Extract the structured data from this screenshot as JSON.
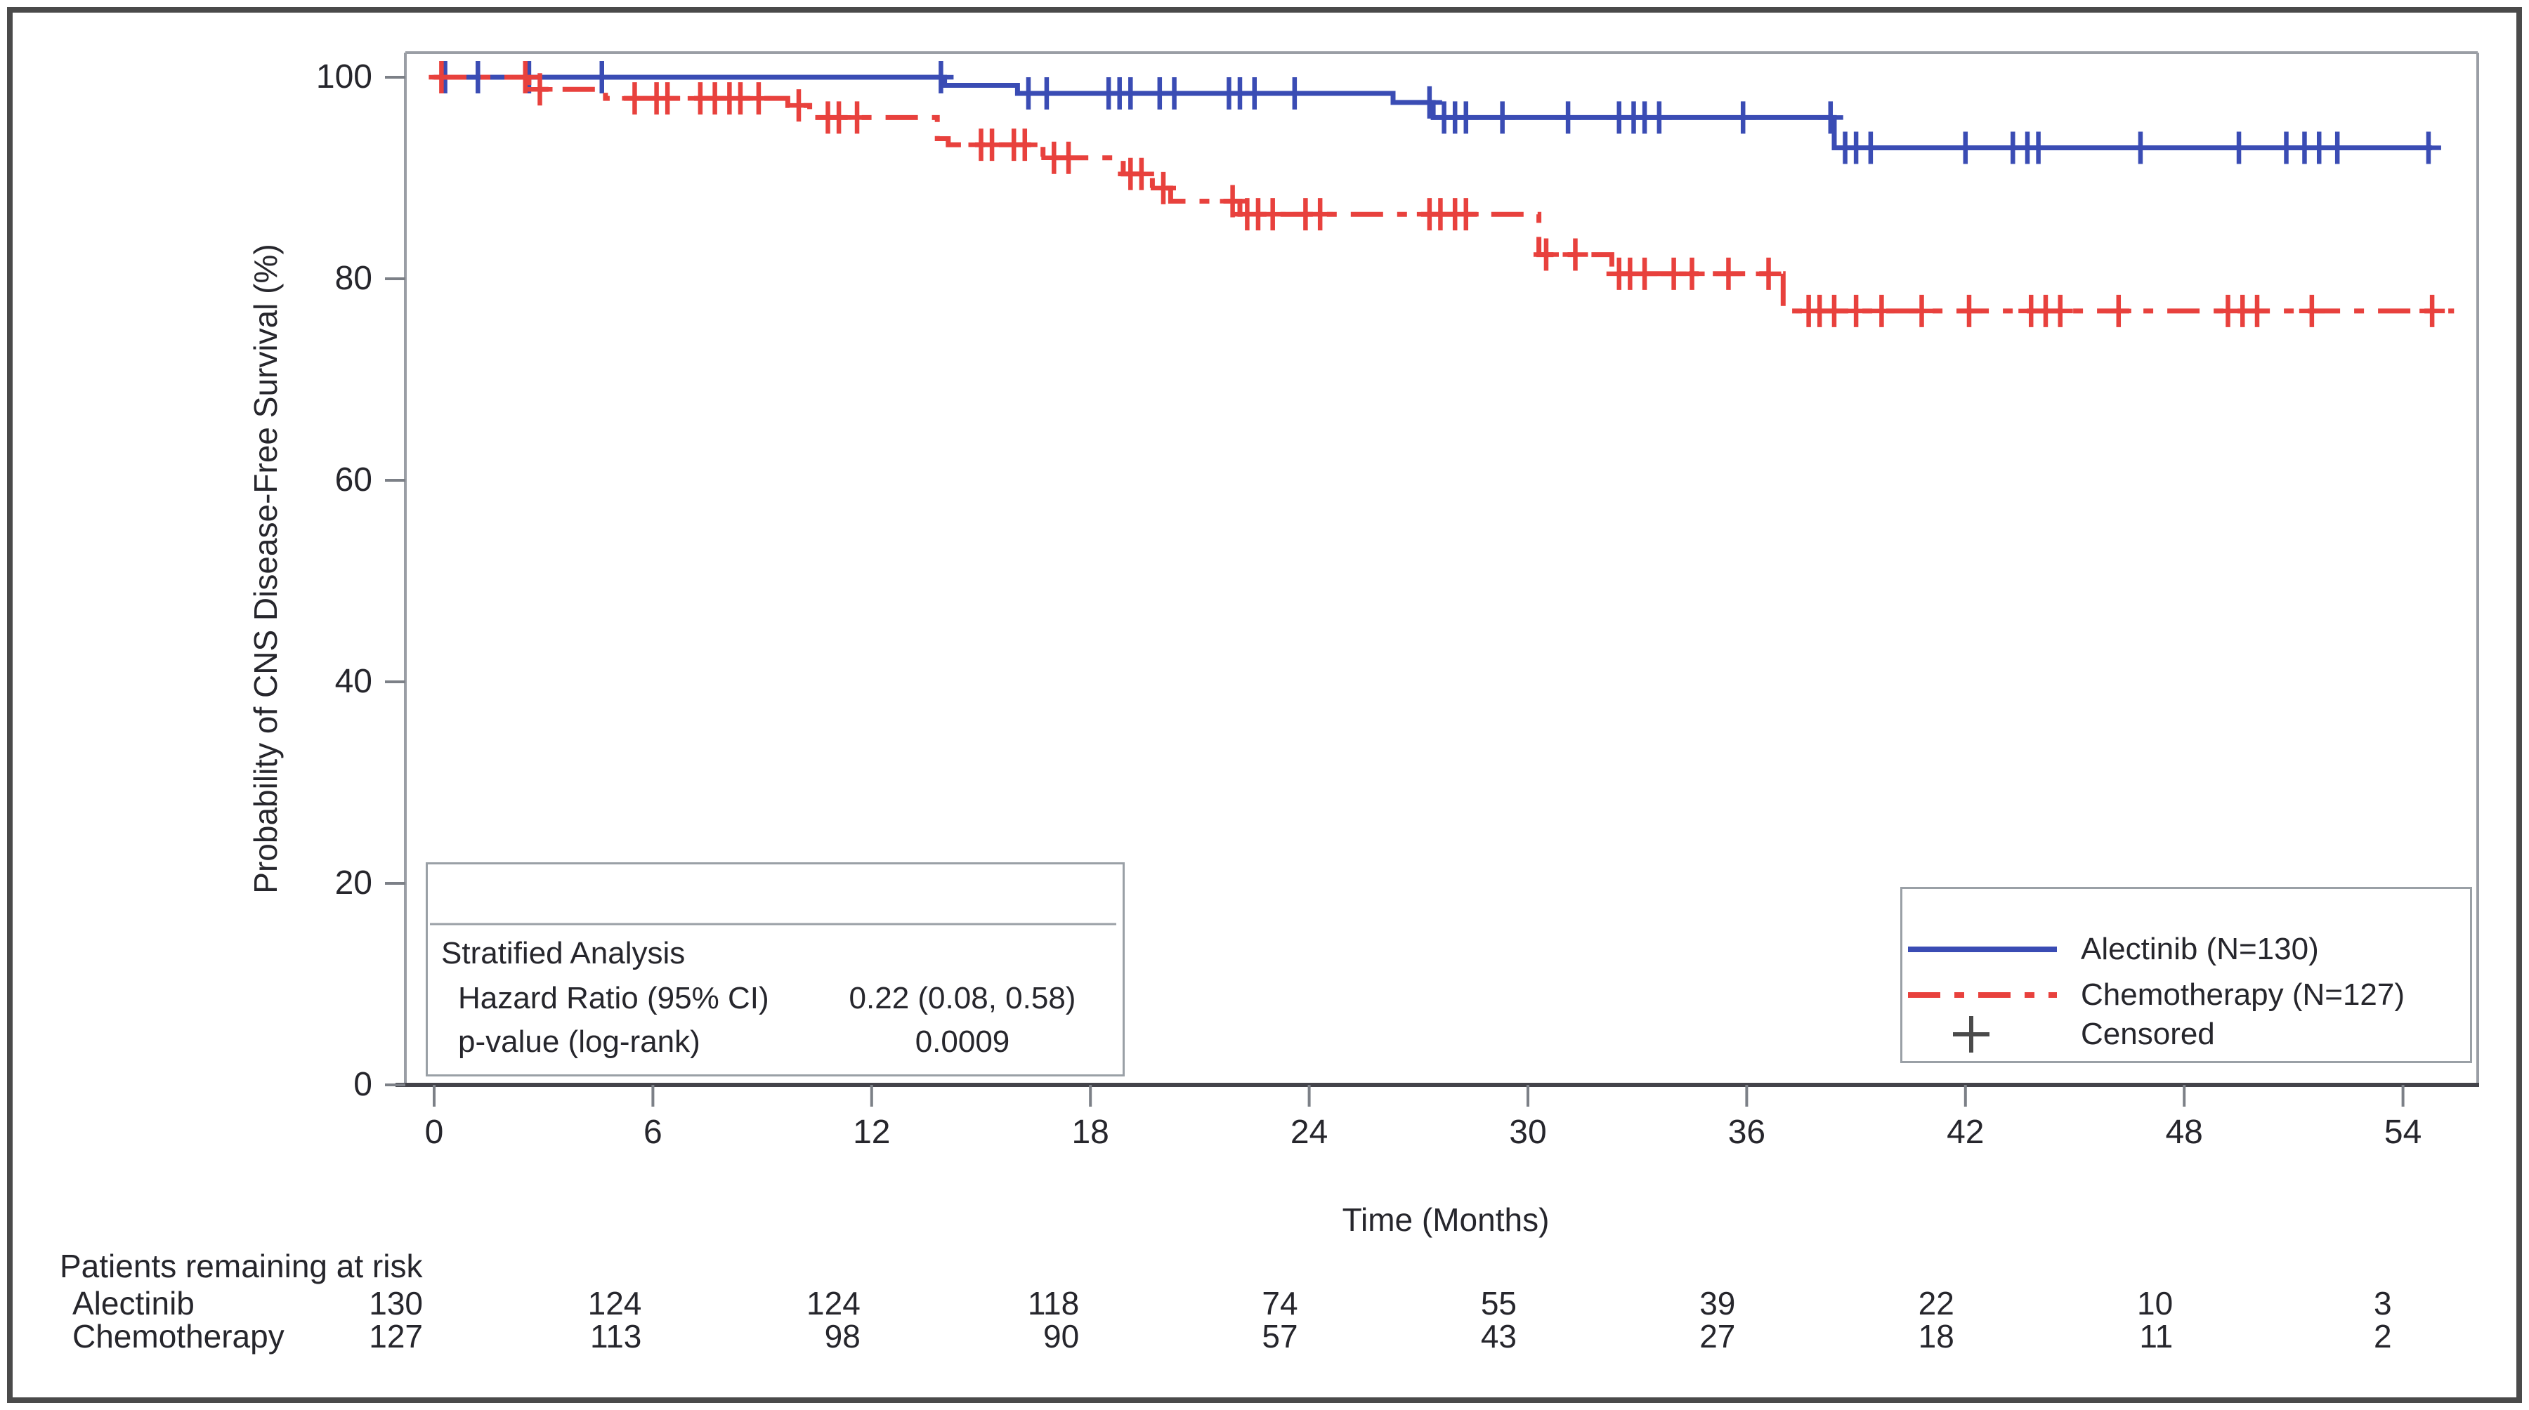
{
  "colors": {
    "alectinib": "#3a4cb4",
    "chemotherapy": "#e8413d",
    "censored_legend": "#4a4a4a",
    "axis_frame": "#9a9ea5",
    "axis_bottom": "#43434a",
    "tick": "#7c8087",
    "box_border": "#9aa0a6",
    "text": "#26262c"
  },
  "chart_data": {
    "type": "line",
    "subtype": "kaplan-meier-step",
    "title": "",
    "xlabel": "Time (Months)",
    "ylabel": "Probability of CNS Disease-Free Survival (%)",
    "x_ticks": [
      0,
      6,
      12,
      18,
      24,
      30,
      36,
      42,
      48,
      54
    ],
    "y_ticks": [
      0,
      20,
      40,
      60,
      80,
      100
    ],
    "xlim": [
      0,
      56.5
    ],
    "ylim": [
      0,
      100
    ],
    "grid": false,
    "legend_position": "lower-right",
    "series": [
      {
        "name": "Alectinib (N=130)",
        "color": "#3a4cb4",
        "line_style": "solid",
        "steps": [
          [
            0,
            100
          ],
          [
            14,
            100
          ],
          [
            14,
            99.2
          ],
          [
            16,
            99.2
          ],
          [
            16,
            98.4
          ],
          [
            26.3,
            98.4
          ],
          [
            26.3,
            97.5
          ],
          [
            27.4,
            97.5
          ],
          [
            27.4,
            96
          ],
          [
            38.4,
            96
          ],
          [
            38.4,
            93
          ],
          [
            54.8,
            93
          ]
        ],
        "censor_marks": [
          [
            0.3,
            100
          ],
          [
            1.2,
            100
          ],
          [
            2.6,
            100
          ],
          [
            4.6,
            100
          ],
          [
            13.9,
            100
          ],
          [
            16.3,
            98.4
          ],
          [
            16.8,
            98.4
          ],
          [
            18.5,
            98.4
          ],
          [
            18.8,
            98.4
          ],
          [
            19.1,
            98.4
          ],
          [
            19.9,
            98.4
          ],
          [
            20.3,
            98.4
          ],
          [
            21.8,
            98.4
          ],
          [
            22.1,
            98.4
          ],
          [
            22.5,
            98.4
          ],
          [
            23.6,
            98.4
          ],
          [
            27.3,
            97.5
          ],
          [
            27.7,
            96
          ],
          [
            28,
            96
          ],
          [
            28.3,
            96
          ],
          [
            29.3,
            96
          ],
          [
            31.1,
            96
          ],
          [
            32.5,
            96
          ],
          [
            32.9,
            96
          ],
          [
            33.2,
            96
          ],
          [
            33.6,
            96
          ],
          [
            35.9,
            96
          ],
          [
            38.3,
            96
          ],
          [
            38.7,
            93
          ],
          [
            39,
            93
          ],
          [
            39.4,
            93
          ],
          [
            42,
            93
          ],
          [
            43.3,
            93
          ],
          [
            43.7,
            93
          ],
          [
            44,
            93
          ],
          [
            46.8,
            93
          ],
          [
            49.5,
            93
          ],
          [
            50.8,
            93
          ],
          [
            51.3,
            93
          ],
          [
            51.7,
            93
          ],
          [
            52.2,
            93
          ],
          [
            54.7,
            93
          ]
        ]
      },
      {
        "name": "Chemotherapy (N=127)",
        "color": "#e8413d",
        "line_style": "dash-dot",
        "steps": [
          [
            0,
            100
          ],
          [
            2.6,
            100
          ],
          [
            2.6,
            98.8
          ],
          [
            4.7,
            98.8
          ],
          [
            4.7,
            97.9
          ],
          [
            9.7,
            97.9
          ],
          [
            9.7,
            97.2
          ],
          [
            10.3,
            97.2
          ],
          [
            10.3,
            96
          ],
          [
            13.8,
            96
          ],
          [
            13.8,
            93.9
          ],
          [
            14.1,
            93.9
          ],
          [
            14.1,
            93.3
          ],
          [
            16.7,
            93.3
          ],
          [
            16.7,
            92
          ],
          [
            18.9,
            92
          ],
          [
            18.9,
            90.4
          ],
          [
            19.7,
            90.4
          ],
          [
            19.7,
            89
          ],
          [
            20.2,
            89
          ],
          [
            20.2,
            87.7
          ],
          [
            22.1,
            87.7
          ],
          [
            22.1,
            86.4
          ],
          [
            30.3,
            86.4
          ],
          [
            30.3,
            82.4
          ],
          [
            32.3,
            82.4
          ],
          [
            32.3,
            80.5
          ],
          [
            37,
            80.5
          ],
          [
            37,
            76.8
          ],
          [
            55.4,
            76.8
          ]
        ],
        "censor_marks": [
          [
            0.2,
            100
          ],
          [
            2.5,
            100
          ],
          [
            2.9,
            98.8
          ],
          [
            5.5,
            97.9
          ],
          [
            6.1,
            97.9
          ],
          [
            6.4,
            97.9
          ],
          [
            7.3,
            97.9
          ],
          [
            7.7,
            97.9
          ],
          [
            8.1,
            97.9
          ],
          [
            8.4,
            97.9
          ],
          [
            8.9,
            97.9
          ],
          [
            10,
            97.2
          ],
          [
            10.8,
            96
          ],
          [
            11.1,
            96
          ],
          [
            11.6,
            96
          ],
          [
            15,
            93.3
          ],
          [
            15.3,
            93.3
          ],
          [
            15.9,
            93.3
          ],
          [
            16.2,
            93.3
          ],
          [
            17,
            92
          ],
          [
            17.4,
            92
          ],
          [
            19.1,
            90.4
          ],
          [
            19.4,
            90.4
          ],
          [
            20,
            89
          ],
          [
            21.9,
            87.7
          ],
          [
            22.3,
            86.4
          ],
          [
            22.6,
            86.4
          ],
          [
            23,
            86.4
          ],
          [
            23.9,
            86.4
          ],
          [
            24.3,
            86.4
          ],
          [
            27.3,
            86.4
          ],
          [
            27.6,
            86.4
          ],
          [
            28,
            86.4
          ],
          [
            28.3,
            86.4
          ],
          [
            30.5,
            82.4
          ],
          [
            31.3,
            82.4
          ],
          [
            32.5,
            80.5
          ],
          [
            32.8,
            80.5
          ],
          [
            33.2,
            80.5
          ],
          [
            34,
            80.5
          ],
          [
            34.5,
            80.5
          ],
          [
            35.5,
            80.5
          ],
          [
            36.6,
            80.5
          ],
          [
            37.7,
            76.8
          ],
          [
            38,
            76.8
          ],
          [
            38.4,
            76.8
          ],
          [
            39,
            76.8
          ],
          [
            39.7,
            76.8
          ],
          [
            40.8,
            76.8
          ],
          [
            42.1,
            76.8
          ],
          [
            43.8,
            76.8
          ],
          [
            44.2,
            76.8
          ],
          [
            44.6,
            76.8
          ],
          [
            46.2,
            76.8
          ],
          [
            49.2,
            76.8
          ],
          [
            49.6,
            76.8
          ],
          [
            50,
            76.8
          ],
          [
            51.5,
            76.8
          ],
          [
            54.8,
            76.8
          ]
        ]
      }
    ],
    "legend": {
      "censored_label": "Censored",
      "censored_marker": "+"
    },
    "stats_box": {
      "title": "Stratified Analysis",
      "rows": [
        {
          "label": "Hazard Ratio (95% CI)",
          "value": "0.22 (0.08, 0.58)"
        },
        {
          "label": "p-value (log-rank)",
          "value": "0.0009"
        }
      ]
    },
    "risk_table": {
      "title": "Patients remaining at risk",
      "times": [
        0,
        6,
        12,
        18,
        24,
        30,
        36,
        42,
        48,
        54
      ],
      "rows": [
        {
          "label": "Alectinib",
          "counts": [
            130,
            124,
            124,
            118,
            74,
            55,
            39,
            22,
            10,
            3
          ]
        },
        {
          "label": "Chemotherapy",
          "counts": [
            127,
            113,
            98,
            90,
            57,
            43,
            27,
            18,
            11,
            2
          ]
        }
      ]
    }
  }
}
